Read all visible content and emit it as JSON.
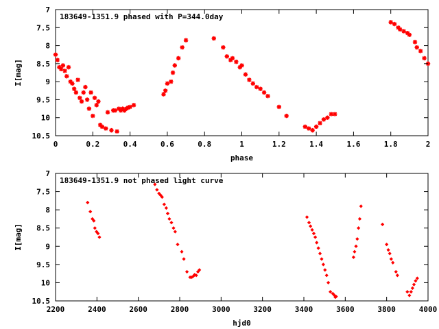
{
  "chart_data": [
    {
      "type": "scatter",
      "title": "183649-1351.9 phased with P=344.0day",
      "xlabel": "phase",
      "ylabel": "I[mag]",
      "xlim": [
        0,
        2
      ],
      "ylim": [
        10.5,
        7
      ],
      "y_inverted": true,
      "xticks": [
        "0",
        "0.2",
        "0.4",
        "0.6",
        "0.8",
        "1",
        "1.2",
        "1.4",
        "1.6",
        "1.8",
        "2"
      ],
      "yticks": [
        "7",
        "7.5",
        "8",
        "8.5",
        "9",
        "9.5",
        "10",
        "10.5"
      ],
      "marker_color": "#ff0000",
      "marker": "plus-cross",
      "grid": false,
      "series": [
        {
          "x": [
            0.0,
            0.01,
            0.02,
            0.03,
            0.04,
            0.05,
            0.06,
            0.07,
            0.08,
            0.09,
            0.1,
            0.11,
            0.12,
            0.13,
            0.14,
            0.15,
            0.16,
            0.17,
            0.18,
            0.19,
            0.2,
            0.21,
            0.22,
            0.23,
            0.24,
            0.25,
            0.27,
            0.28,
            0.3,
            0.31,
            0.32,
            0.33,
            0.34,
            0.35,
            0.36,
            0.37,
            0.38,
            0.39,
            0.4,
            0.42,
            0.58,
            0.59,
            0.6,
            0.62,
            0.63,
            0.64,
            0.66,
            0.68,
            0.7,
            0.85,
            0.9,
            0.92,
            0.94,
            0.95,
            0.97,
            0.99,
            1.0,
            1.02,
            1.04,
            1.06,
            1.08,
            1.1,
            1.12,
            1.14,
            1.2,
            1.24,
            1.34,
            1.36,
            1.38,
            1.4,
            1.42,
            1.44,
            1.46,
            1.48,
            1.5,
            1.8,
            1.82,
            1.84,
            1.85,
            1.87,
            1.89,
            1.9,
            1.93,
            1.94,
            1.96,
            1.98,
            2.0
          ],
          "y": [
            8.25,
            8.4,
            8.6,
            8.65,
            8.55,
            8.7,
            8.85,
            8.6,
            9.0,
            9.05,
            9.2,
            9.3,
            8.95,
            9.45,
            9.55,
            9.3,
            9.15,
            9.5,
            9.75,
            9.3,
            9.95,
            9.45,
            9.65,
            9.55,
            10.2,
            10.25,
            10.3,
            9.85,
            10.35,
            9.8,
            9.8,
            10.38,
            9.75,
            9.8,
            9.75,
            9.8,
            9.75,
            9.72,
            9.7,
            9.65,
            9.35,
            9.25,
            9.05,
            9.0,
            8.75,
            8.55,
            8.35,
            8.05,
            7.85,
            7.8,
            8.05,
            8.3,
            8.4,
            8.35,
            8.45,
            8.6,
            8.55,
            8.8,
            8.95,
            9.05,
            9.15,
            9.2,
            9.3,
            9.4,
            9.7,
            9.95,
            10.25,
            10.3,
            10.35,
            10.25,
            10.15,
            10.05,
            10.0,
            9.9,
            9.9,
            7.35,
            7.4,
            7.5,
            7.55,
            7.6,
            7.65,
            7.7,
            7.9,
            8.05,
            8.15,
            8.35,
            8.5
          ]
        }
      ]
    },
    {
      "type": "scatter",
      "title": "183649-1351.9 not phased light curve",
      "xlabel": "hjd0",
      "ylabel": "I[mag]",
      "xlim": [
        2200,
        4000
      ],
      "ylim": [
        10.5,
        7
      ],
      "y_inverted": true,
      "xticks": [
        "2200",
        "2400",
        "2600",
        "2800",
        "3000",
        "3200",
        "3400",
        "3600",
        "3800",
        "4000"
      ],
      "yticks": [
        "7",
        "7.5",
        "8",
        "8.5",
        "9",
        "9.5",
        "10",
        "10.5"
      ],
      "marker_color": "#ff0000",
      "marker": "diamond",
      "grid": false,
      "series": [
        {
          "x": [
            2355,
            2368,
            2378,
            2385,
            2390,
            2398,
            2405,
            2412,
            2680,
            2690,
            2700,
            2708,
            2715,
            2725,
            2735,
            2742,
            2750,
            2760,
            2770,
            2778,
            2790,
            2810,
            2820,
            2835,
            2850,
            2858,
            2866,
            2872,
            2880,
            2888,
            2895,
            3415,
            3425,
            3432,
            3440,
            3448,
            3455,
            3462,
            3470,
            3478,
            3486,
            3494,
            3502,
            3510,
            3518,
            3528,
            3540,
            3548,
            3552,
            3556,
            3640,
            3645,
            3652,
            3658,
            3664,
            3670,
            3676,
            3780,
            3800,
            3808,
            3815,
            3822,
            3830,
            3845,
            3852,
            3900,
            3910,
            3918,
            3925,
            3932,
            3940,
            3948
          ],
          "y": [
            7.8,
            8.05,
            8.25,
            8.3,
            8.5,
            8.6,
            8.65,
            8.75,
            7.3,
            7.45,
            7.55,
            7.6,
            7.65,
            7.85,
            7.95,
            8.1,
            8.25,
            8.35,
            8.5,
            8.6,
            8.95,
            9.15,
            9.35,
            9.7,
            9.85,
            9.85,
            9.82,
            9.78,
            9.8,
            9.7,
            9.65,
            8.2,
            8.35,
            8.45,
            8.55,
            8.65,
            8.75,
            8.9,
            9.05,
            9.2,
            9.35,
            9.5,
            9.65,
            9.8,
            10.0,
            10.25,
            10.3,
            10.35,
            10.4,
            10.38,
            9.3,
            9.15,
            9.0,
            8.8,
            8.5,
            8.25,
            7.9,
            8.4,
            8.95,
            9.1,
            9.2,
            9.35,
            9.45,
            9.7,
            9.8,
            10.25,
            10.35,
            10.25,
            10.15,
            10.05,
            9.95,
            9.88
          ]
        }
      ]
    }
  ]
}
